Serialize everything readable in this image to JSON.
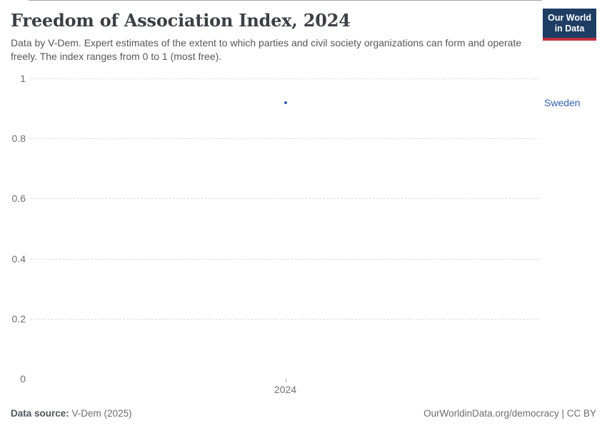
{
  "header": {
    "title": "Freedom of Association Index, 2024",
    "subtitle": "Data by V-Dem. Expert estimates of the extent to which parties and civil society organizations can form and operate freely. The index ranges from 0 to 1 (most free).",
    "logo": {
      "line1": "Our World",
      "line2": "in Data"
    }
  },
  "chart_data": {
    "type": "scatter",
    "title": "Freedom of Association Index, 2024",
    "x": [
      2024
    ],
    "series": [
      {
        "name": "Sweden",
        "values": [
          0.92
        ],
        "color": "#3360a9"
      }
    ],
    "entity_label": "Sweden",
    "ylim": [
      0,
      1
    ],
    "yticks": [
      {
        "value": 0,
        "label": "0"
      },
      {
        "value": 0.2,
        "label": "0.2"
      },
      {
        "value": 0.4,
        "label": "0.4"
      },
      {
        "value": 0.6,
        "label": "0.6"
      },
      {
        "value": 0.8,
        "label": "0.8"
      },
      {
        "value": 1,
        "label": "1"
      }
    ],
    "xticks": [
      {
        "value": 2024,
        "label": "2024"
      }
    ],
    "grid": "horizontal-dashed",
    "legend_position": "right-of-plot"
  },
  "footer": {
    "source_label": "Data source:",
    "source_value": "V-Dem (2025)",
    "credit": "OurWorldinData.org/democracy | CC BY"
  },
  "colors": {
    "accent_blue": "#3360a9",
    "logo_navy": "#1d3d63",
    "logo_red": "#c0303e",
    "gridline": "#dcdcdc",
    "axis": "#a5a5a5",
    "tick_text": "#6e6e6e"
  }
}
